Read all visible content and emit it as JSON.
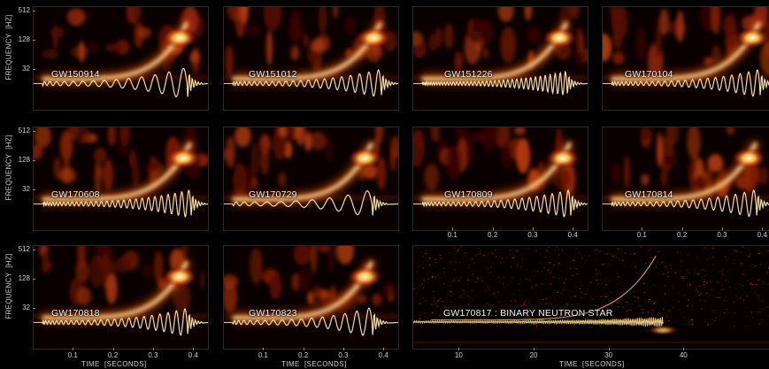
{
  "chart_data": {
    "type": "spectrogram-grid",
    "ylabel": "FREQUENCY  [HZ]",
    "yticks": [
      "512",
      "128",
      "32"
    ],
    "xlabel": "TIME  [SECONDS]",
    "xticks_short": [
      "0.1",
      "0.2",
      "0.3",
      "0.4"
    ],
    "xticks_long": [
      "10",
      "20",
      "30",
      "40"
    ],
    "events": [
      {
        "name": "GW150914",
        "type": "binary-black-hole"
      },
      {
        "name": "GW151012",
        "type": "binary-black-hole"
      },
      {
        "name": "GW151226",
        "type": "binary-black-hole"
      },
      {
        "name": "GW170104",
        "type": "binary-black-hole"
      },
      {
        "name": "GW170608",
        "type": "binary-black-hole"
      },
      {
        "name": "GW170729",
        "type": "binary-black-hole"
      },
      {
        "name": "GW170809",
        "type": "binary-black-hole"
      },
      {
        "name": "GW170814",
        "type": "binary-black-hole"
      },
      {
        "name": "GW170818",
        "type": "binary-black-hole"
      },
      {
        "name": "GW170823",
        "type": "binary-black-hole"
      },
      {
        "name": "GW170817 : BINARY NEUTRON STAR",
        "type": "binary-neutron-star"
      }
    ]
  }
}
